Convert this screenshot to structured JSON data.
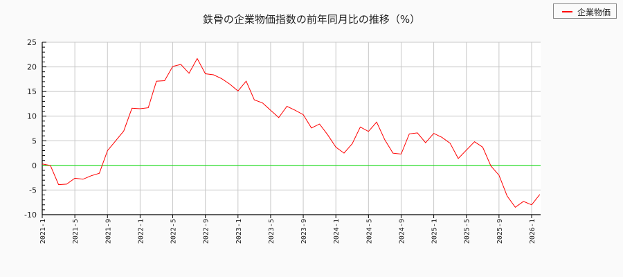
{
  "title": "鉄骨の企業物価指数の前年同月比の推移（%）",
  "legend": {
    "label": "企業物価",
    "color": "#ff0000"
  },
  "chart_data": {
    "type": "line",
    "title": "鉄骨の企業物価指数の前年同月比の推移（%）",
    "xlabel": "",
    "ylabel": "",
    "ylim": [
      -10,
      25
    ],
    "yticks": [
      25,
      20,
      15,
      10,
      5,
      0,
      -5,
      -10
    ],
    "xtick_labels": [
      "2021-1",
      "2021-5",
      "2021-9",
      "2022-1",
      "2022-5",
      "2022-9",
      "2023-1",
      "2023-5",
      "2023-9",
      "2024-1",
      "2024-5",
      "2024-9",
      "2025-1",
      "2025-5",
      "2025-9",
      "2026-1"
    ],
    "grid": true,
    "legend_position": "top-right",
    "reference_line": {
      "y": 0,
      "color": "#00dd00"
    },
    "x": [
      "2021-1",
      "2021-2",
      "2021-3",
      "2021-4",
      "2021-5",
      "2021-6",
      "2021-7",
      "2021-8",
      "2021-9",
      "2021-10",
      "2021-11",
      "2021-12",
      "2022-1",
      "2022-2",
      "2022-3",
      "2022-4",
      "2022-5",
      "2022-6",
      "2022-7",
      "2022-8",
      "2022-9",
      "2022-10",
      "2022-11",
      "2022-12",
      "2023-1",
      "2023-2",
      "2023-3",
      "2023-4",
      "2023-5",
      "2023-6",
      "2023-7",
      "2023-8",
      "2023-9",
      "2023-10",
      "2023-11",
      "2023-12",
      "2024-1",
      "2024-2",
      "2024-3",
      "2024-4",
      "2024-5",
      "2024-6",
      "2024-7",
      "2024-8",
      "2024-9",
      "2024-10",
      "2024-11",
      "2024-12",
      "2025-1",
      "2025-2",
      "2025-3",
      "2025-4",
      "2025-5",
      "2025-6",
      "2025-7",
      "2025-8",
      "2025-9",
      "2025-10",
      "2025-11",
      "2025-12",
      "2026-1",
      "2026-2"
    ],
    "series": [
      {
        "name": "企業物価",
        "color": "#ff0000",
        "values": [
          0.3,
          0.0,
          -3.9,
          -3.8,
          -2.6,
          -2.8,
          -2.1,
          -1.6,
          3.0,
          5.0,
          7.0,
          11.6,
          11.5,
          11.7,
          17.1,
          17.2,
          20.1,
          20.5,
          18.7,
          21.7,
          18.6,
          18.4,
          17.6,
          16.5,
          15.1,
          17.1,
          13.3,
          12.7,
          11.2,
          9.7,
          12.0,
          11.2,
          10.3,
          7.6,
          8.4,
          6.2,
          3.7,
          2.5,
          4.4,
          7.8,
          6.9,
          8.8,
          5.2,
          2.5,
          2.3,
          6.4,
          6.6,
          4.6,
          6.5,
          5.7,
          4.5,
          1.4,
          3.1,
          4.8,
          3.7,
          -0.1,
          -2.0,
          -6.2,
          -8.5,
          -7.3,
          -8.0,
          -5.9
        ]
      }
    ]
  }
}
